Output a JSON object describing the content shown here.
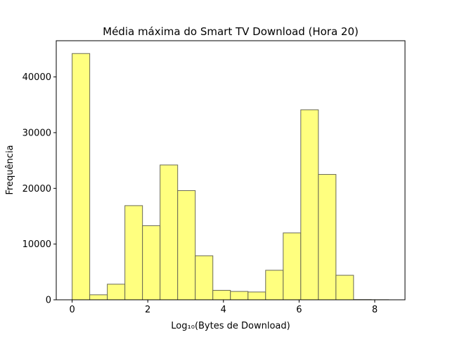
{
  "chart_data": {
    "type": "bar",
    "title": "Média máxima do Smart TV Download (Hora 20)",
    "xlabel": "Log₁₀(Bytes de Download)",
    "ylabel": "Frequência",
    "xlim": [
      -0.42,
      8.8
    ],
    "ylim": [
      0,
      46500
    ],
    "xticks": [
      0,
      2,
      4,
      6,
      8
    ],
    "yticks": [
      0,
      10000,
      20000,
      30000,
      40000
    ],
    "bar_color": "#ffff7f",
    "edge_color": "#6b6b55",
    "grid": false,
    "bins": [
      {
        "x0": 0.0,
        "x1": 0.465,
        "count": 44200
      },
      {
        "x0": 0.465,
        "x1": 0.93,
        "count": 900
      },
      {
        "x0": 0.93,
        "x1": 1.395,
        "count": 2800
      },
      {
        "x0": 1.395,
        "x1": 1.86,
        "count": 16900
      },
      {
        "x0": 1.86,
        "x1": 2.325,
        "count": 13300
      },
      {
        "x0": 2.325,
        "x1": 2.79,
        "count": 24200
      },
      {
        "x0": 2.79,
        "x1": 3.255,
        "count": 19600
      },
      {
        "x0": 3.255,
        "x1": 3.72,
        "count": 7900
      },
      {
        "x0": 3.72,
        "x1": 4.185,
        "count": 1700
      },
      {
        "x0": 4.185,
        "x1": 4.65,
        "count": 1500
      },
      {
        "x0": 4.65,
        "x1": 5.115,
        "count": 1400
      },
      {
        "x0": 5.115,
        "x1": 5.58,
        "count": 5300
      },
      {
        "x0": 5.58,
        "x1": 6.045,
        "count": 12000
      },
      {
        "x0": 6.045,
        "x1": 6.51,
        "count": 34100
      },
      {
        "x0": 6.51,
        "x1": 6.975,
        "count": 22500
      },
      {
        "x0": 6.975,
        "x1": 7.44,
        "count": 4400
      },
      {
        "x0": 7.44,
        "x1": 7.905,
        "count": 40
      },
      {
        "x0": 7.905,
        "x1": 8.37,
        "count": 20
      }
    ]
  }
}
